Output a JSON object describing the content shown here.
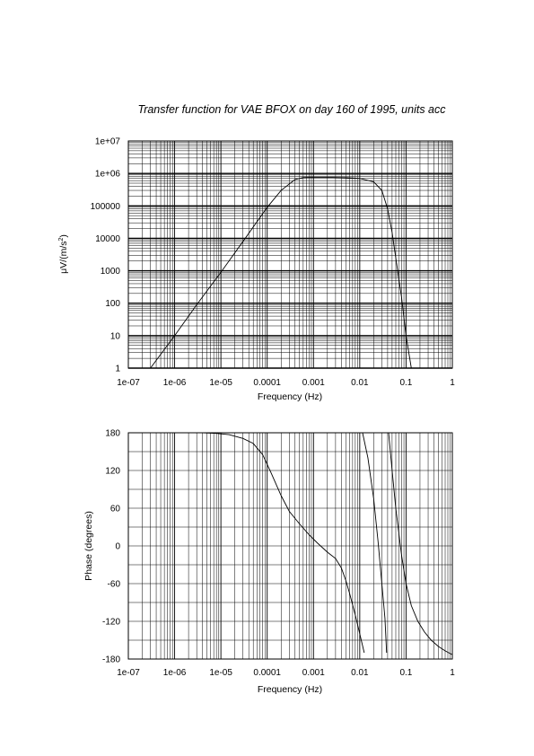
{
  "title": "Transfer function for VAE BFOX on day 160 of 1995, units acc",
  "chart_data": [
    {
      "type": "line",
      "name": "amplitude",
      "xlabel": "Frequency (Hz)",
      "ylabel_prefix": "μV/(m/s",
      "ylabel_sup": "2",
      "ylabel_suffix": ")",
      "x_scale": "log",
      "y_scale": "log",
      "xlim": [
        1e-07,
        1
      ],
      "ylim": [
        1,
        10000000
      ],
      "grid": true,
      "x_ticks": [
        "1e-07",
        "1e-06",
        "1e-05",
        "0.0001",
        "0.001",
        "0.01",
        "0.1",
        "1"
      ],
      "y_ticks": [
        "1",
        "10",
        "100",
        "1000",
        "10000",
        "100000",
        "1e+06",
        "1e+07"
      ],
      "x": [
        3e-07,
        1e-06,
        3e-06,
        1e-05,
        3e-05,
        0.0001,
        0.0002,
        0.0004,
        0.0006,
        0.001,
        0.002,
        0.005,
        0.01,
        0.02,
        0.03,
        0.04,
        0.05,
        0.06,
        0.08,
        0.1,
        0.13
      ],
      "values": [
        1,
        10,
        90,
        900,
        8000,
        90000,
        300000,
        650000,
        750000,
        760000,
        760000,
        740000,
        700000,
        550000,
        300000,
        80000,
        15000,
        2500,
        150,
        10,
        1
      ]
    },
    {
      "type": "line",
      "name": "phase",
      "xlabel": "Frequency (Hz)",
      "ylabel": "Phase (degrees)",
      "x_scale": "log",
      "y_scale": "linear",
      "xlim": [
        1e-07,
        1
      ],
      "ylim": [
        -180,
        180
      ],
      "grid": true,
      "x_ticks": [
        "1e-07",
        "1e-06",
        "1e-05",
        "0.0001",
        "0.001",
        "0.01",
        "0.1",
        "1"
      ],
      "y_ticks": [
        "-180",
        "-120",
        "-60",
        "0",
        "60",
        "120",
        "180"
      ],
      "y_tick_values": [
        -180,
        -120,
        -60,
        0,
        60,
        120,
        180
      ],
      "segments": [
        {
          "x": [
            4e-06,
            8e-06,
            1.5e-05,
            3e-05,
            5e-05,
            8e-05,
            0.00012,
            0.0002,
            0.0003,
            0.0005,
            0.0008,
            0.0012,
            0.002,
            0.003,
            0.004,
            0.005,
            0.006,
            0.008,
            0.01,
            0.0125
          ],
          "values": [
            180,
            179,
            177,
            171,
            163,
            145,
            117,
            80,
            55,
            35,
            18,
            5,
            -10,
            -20,
            -35,
            -55,
            -75,
            -110,
            -140,
            -170
          ]
        },
        {
          "x": [
            0.0115,
            0.015,
            0.02,
            0.025,
            0.03,
            0.035,
            0.038
          ],
          "values": [
            180,
            140,
            75,
            5,
            -60,
            -115,
            -170
          ]
        },
        {
          "x": [
            0.042,
            0.05,
            0.06,
            0.08,
            0.1,
            0.13,
            0.18,
            0.25,
            0.35,
            0.5,
            0.7,
            1
          ],
          "values": [
            180,
            120,
            60,
            -15,
            -60,
            -95,
            -120,
            -137,
            -150,
            -160,
            -167,
            -173
          ]
        }
      ]
    }
  ]
}
